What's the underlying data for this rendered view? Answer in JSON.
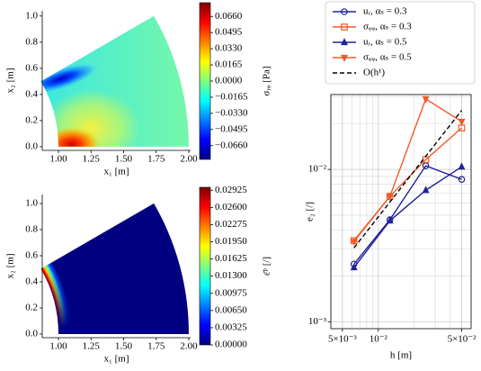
{
  "chart_data": [
    {
      "type": "contour",
      "xlabel": "x₁ [m]",
      "ylabel": "x₂ [m]",
      "xlim": [
        0.876,
        2.014
      ],
      "ylim": [
        -0.028,
        1.04
      ],
      "xticks": [
        {
          "value": 1,
          "label": "1.00"
        },
        1.25,
        {
          "value": 1.5,
          "label": "1.50"
        },
        1.75,
        {
          "value": 2,
          "label": "2.00"
        }
      ],
      "yticks": [
        {
          "value": 0,
          "label": "0.0"
        },
        0.2,
        0.4,
        0.6,
        0.8,
        {
          "value": 1,
          "label": "1.0"
        }
      ],
      "colorbar": {
        "label": "σᵣᵩ [Pa]",
        "clim": [
          -0.08,
          0.08
        ],
        "ticks": [
          {
            "value": 0.066,
            "label": "0.0660"
          },
          0.0495,
          {
            "value": 0.033,
            "label": "0.0330"
          },
          0.0165,
          {
            "value": 0,
            "label": "0.0000"
          },
          {
            "value": -0.0165,
            "label": "−0.0165"
          },
          {
            "value": -0.033,
            "label": "−0.0330"
          },
          {
            "value": -0.0495,
            "label": "−0.0495"
          },
          {
            "value": -0.066,
            "label": "−0.0660"
          }
        ]
      }
    },
    {
      "type": "contour",
      "xlabel": "x₁ [m]",
      "ylabel": "x₂ [m]",
      "xlim": [
        0.876,
        2.014
      ],
      "ylim": [
        -0.028,
        1.069
      ],
      "xticks": [
        {
          "value": 1,
          "label": "1.00"
        },
        1.25,
        {
          "value": 1.5,
          "label": "1.50"
        },
        1.75,
        {
          "value": 2,
          "label": "2.00"
        }
      ],
      "yticks": [
        {
          "value": 0,
          "label": "0.0"
        },
        0.2,
        0.4,
        0.6,
        0.8,
        {
          "value": 1,
          "label": "1.0"
        }
      ],
      "colorbar": {
        "label": "ε̄ᵖ [/]",
        "clim": [
          0,
          0.0298
        ],
        "ticks": [
          0.02925,
          {
            "value": 0.026,
            "label": "0.02600"
          },
          0.02275,
          {
            "value": 0.0195,
            "label": "0.01950"
          },
          0.01625,
          {
            "value": 0.013,
            "label": "0.01300"
          },
          0.00975,
          {
            "value": 0.0065,
            "label": "0.00650"
          },
          0.00325,
          {
            "value": 0,
            "label": "0.00000"
          }
        ]
      }
    },
    {
      "type": "line",
      "xlabel": "h [m]",
      "ylabel": "e₂ [/]",
      "xscale": "log",
      "yscale": "log",
      "grid": true,
      "xlim": [
        0.004,
        0.06
      ],
      "ylim": [
        0.0009,
        0.031
      ],
      "xticks": [
        {
          "value": 0.005,
          "label": "5×10⁻³"
        },
        {
          "value": 0.01,
          "label": "10⁻²"
        },
        {
          "value": 0.05,
          "label": "5×10⁻²"
        }
      ],
      "yticks": [
        {
          "value": 0.001,
          "label": "10⁻³"
        },
        {
          "value": 0.01,
          "label": "10⁻²"
        }
      ],
      "xminor_ticks": [
        0.004,
        0.006,
        0.007,
        0.008,
        0.009,
        0.02,
        0.03,
        0.04
      ],
      "yminor_ticks": [
        0.002,
        0.003,
        0.004,
        0.005,
        0.006,
        0.007,
        0.008,
        0.009,
        0.02,
        0.03
      ],
      "x": [
        0.00625,
        0.0125,
        0.025,
        0.05
      ],
      "series": [
        {
          "name": "uᵣ, αₛ = 0.3",
          "color": "#22229a",
          "marker": "o",
          "values": [
            0.00239,
            0.00467,
            0.01057,
            0.0086
          ]
        },
        {
          "name": "σᵩᵩ, αₛ = 0.3",
          "color": "#f05a28",
          "marker": "s",
          "values": [
            0.00341,
            0.00664,
            0.0116,
            0.0187
          ]
        },
        {
          "name": "uᵣ, αₛ = 0.5",
          "color": "#22229a",
          "marker": "^",
          "values": [
            0.00227,
            0.0046,
            0.0073,
            0.0104
          ]
        },
        {
          "name": "σᵩᵩ, αₛ = 0.5",
          "color": "#f05a28",
          "marker": "v",
          "values": [
            0.00336,
            0.00664,
            0.029,
            0.0206
          ]
        },
        {
          "name": "O(h¹)",
          "color": "#000000",
          "linestyle": "dashed",
          "values": [
            0.00305,
            0.0061,
            0.0122,
            0.0244
          ]
        }
      ],
      "legend": "upper right"
    }
  ]
}
